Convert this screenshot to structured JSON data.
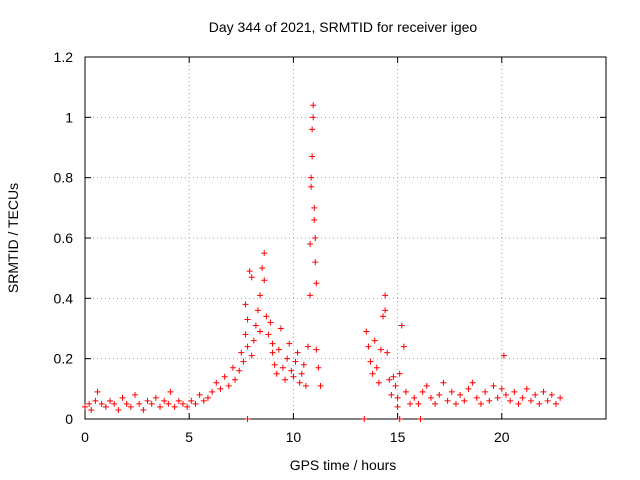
{
  "chart_data": {
    "type": "scatter",
    "title": "Day 344 of 2021, SRMTID for receiver igeo",
    "xlabel": "GPS time / hours",
    "ylabel": "SRMTID / TECUs",
    "xlim": [
      0,
      25
    ],
    "ylim": [
      0,
      1.2
    ],
    "xticks": [
      0,
      5,
      10,
      15,
      20
    ],
    "xtick_labels": [
      "0",
      "5",
      "10",
      "15",
      "20"
    ],
    "yticks": [
      0,
      0.2,
      0.4,
      0.6,
      0.8,
      1,
      1.2
    ],
    "ytick_labels": [
      "0",
      "0.2",
      "0.4",
      "0.6",
      "0.8",
      "1",
      "1.2"
    ],
    "grid": true,
    "marker": "+",
    "color": "#ff0000",
    "series": [
      {
        "name": "SRMTID",
        "points": [
          [
            0.0,
            0.04
          ],
          [
            0.2,
            0.05
          ],
          [
            0.3,
            0.03
          ],
          [
            0.5,
            0.06
          ],
          [
            0.6,
            0.09
          ],
          [
            0.8,
            0.05
          ],
          [
            1.0,
            0.04
          ],
          [
            1.2,
            0.06
          ],
          [
            1.4,
            0.05
          ],
          [
            1.6,
            0.03
          ],
          [
            1.8,
            0.07
          ],
          [
            2.0,
            0.05
          ],
          [
            2.2,
            0.04
          ],
          [
            2.4,
            0.08
          ],
          [
            2.6,
            0.05
          ],
          [
            2.8,
            0.03
          ],
          [
            3.0,
            0.06
          ],
          [
            3.2,
            0.05
          ],
          [
            3.4,
            0.07
          ],
          [
            3.6,
            0.04
          ],
          [
            3.8,
            0.06
          ],
          [
            4.0,
            0.05
          ],
          [
            4.1,
            0.09
          ],
          [
            4.3,
            0.04
          ],
          [
            4.5,
            0.06
          ],
          [
            4.7,
            0.05
          ],
          [
            4.9,
            0.04
          ],
          [
            5.1,
            0.06
          ],
          [
            5.3,
            0.05
          ],
          [
            5.5,
            0.08
          ],
          [
            5.7,
            0.06
          ],
          [
            5.9,
            0.07
          ],
          [
            6.1,
            0.09
          ],
          [
            6.3,
            0.12
          ],
          [
            6.5,
            0.1
          ],
          [
            6.7,
            0.14
          ],
          [
            6.9,
            0.11
          ],
          [
            7.1,
            0.17
          ],
          [
            7.2,
            0.13
          ],
          [
            7.4,
            0.16
          ],
          [
            7.5,
            0.22
          ],
          [
            7.6,
            0.19
          ],
          [
            7.7,
            0.28
          ],
          [
            7.7,
            0.38
          ],
          [
            7.8,
            0.24
          ],
          [
            7.8,
            0.33
          ],
          [
            7.9,
            0.49
          ],
          [
            8.0,
            0.47
          ],
          [
            8.0,
            0.21
          ],
          [
            8.1,
            0.26
          ],
          [
            8.2,
            0.31
          ],
          [
            8.3,
            0.36
          ],
          [
            8.4,
            0.29
          ],
          [
            8.4,
            0.41
          ],
          [
            8.5,
            0.5
          ],
          [
            8.6,
            0.55
          ],
          [
            8.6,
            0.46
          ],
          [
            8.7,
            0.34
          ],
          [
            8.8,
            0.28
          ],
          [
            8.9,
            0.32
          ],
          [
            9.0,
            0.22
          ],
          [
            9.0,
            0.25
          ],
          [
            9.1,
            0.18
          ],
          [
            9.2,
            0.15
          ],
          [
            9.3,
            0.23
          ],
          [
            9.4,
            0.3
          ],
          [
            9.5,
            0.17
          ],
          [
            9.6,
            0.13
          ],
          [
            9.7,
            0.2
          ],
          [
            9.8,
            0.25
          ],
          [
            9.9,
            0.16
          ],
          [
            10.0,
            0.14
          ],
          [
            10.1,
            0.19
          ],
          [
            10.2,
            0.22
          ],
          [
            10.3,
            0.12
          ],
          [
            10.4,
            0.15
          ],
          [
            10.5,
            0.18
          ],
          [
            10.6,
            0.11
          ],
          [
            10.7,
            0.24
          ],
          [
            10.8,
            0.41
          ],
          [
            10.8,
            0.58
          ],
          [
            10.85,
            0.8
          ],
          [
            10.85,
            0.77
          ],
          [
            10.9,
            0.96
          ],
          [
            10.9,
            0.87
          ],
          [
            10.95,
            1.04
          ],
          [
            10.95,
            1.0
          ],
          [
            11.0,
            0.7
          ],
          [
            11.0,
            0.66
          ],
          [
            11.05,
            0.6
          ],
          [
            11.05,
            0.52
          ],
          [
            11.1,
            0.45
          ],
          [
            11.1,
            0.23
          ],
          [
            11.2,
            0.17
          ],
          [
            11.3,
            0.11
          ],
          [
            13.5,
            0.29
          ],
          [
            13.6,
            0.24
          ],
          [
            13.7,
            0.19
          ],
          [
            13.8,
            0.15
          ],
          [
            13.9,
            0.26
          ],
          [
            14.0,
            0.17
          ],
          [
            14.1,
            0.12
          ],
          [
            14.2,
            0.23
          ],
          [
            14.3,
            0.34
          ],
          [
            14.4,
            0.41
          ],
          [
            14.4,
            0.36
          ],
          [
            14.5,
            0.22
          ],
          [
            14.6,
            0.13
          ],
          [
            14.7,
            0.08
          ],
          [
            14.8,
            0.14
          ],
          [
            14.9,
            0.11
          ],
          [
            15.0,
            0.04
          ],
          [
            15.0,
            0.07
          ],
          [
            15.1,
            0.15
          ],
          [
            15.2,
            0.31
          ],
          [
            15.3,
            0.24
          ],
          [
            15.4,
            0.09
          ],
          [
            15.6,
            0.05
          ],
          [
            15.8,
            0.07
          ],
          [
            16.0,
            0.05
          ],
          [
            16.2,
            0.09
          ],
          [
            16.4,
            0.11
          ],
          [
            16.6,
            0.07
          ],
          [
            16.8,
            0.05
          ],
          [
            17.0,
            0.08
          ],
          [
            17.2,
            0.12
          ],
          [
            17.4,
            0.06
          ],
          [
            17.6,
            0.09
          ],
          [
            17.8,
            0.05
          ],
          [
            18.0,
            0.08
          ],
          [
            18.2,
            0.06
          ],
          [
            18.4,
            0.1
          ],
          [
            18.6,
            0.12
          ],
          [
            18.8,
            0.07
          ],
          [
            19.0,
            0.05
          ],
          [
            19.2,
            0.09
          ],
          [
            19.4,
            0.06
          ],
          [
            19.6,
            0.11
          ],
          [
            19.8,
            0.07
          ],
          [
            20.0,
            0.1
          ],
          [
            20.1,
            0.21
          ],
          [
            20.2,
            0.08
          ],
          [
            20.4,
            0.06
          ],
          [
            20.6,
            0.09
          ],
          [
            20.8,
            0.05
          ],
          [
            21.0,
            0.07
          ],
          [
            21.2,
            0.1
          ],
          [
            21.4,
            0.06
          ],
          [
            21.6,
            0.08
          ],
          [
            21.8,
            0.05
          ],
          [
            22.0,
            0.09
          ],
          [
            22.2,
            0.06
          ],
          [
            22.4,
            0.08
          ],
          [
            22.6,
            0.05
          ],
          [
            22.8,
            0.07
          ]
        ]
      }
    ],
    "zero_points": [
      7.8,
      13.4,
      15.1,
      16.1
    ]
  }
}
